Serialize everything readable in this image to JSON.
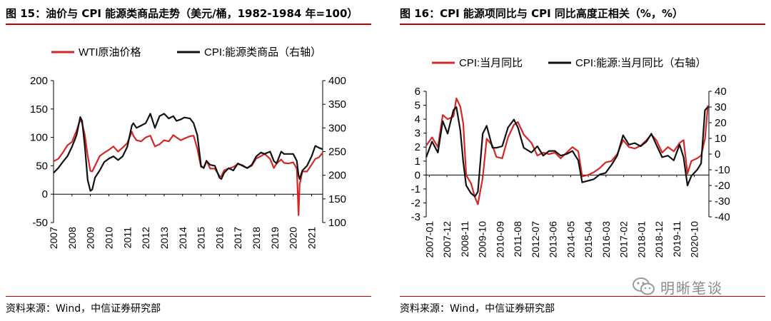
{
  "left": {
    "title": "图 15：油价与 CPI 能源类商品走势（美元/桶，1982-1984 年=100）",
    "source": "资料来源：Wind，中信证券研究部"
  },
  "right": {
    "title": "图 16：CPI 能源项同比与 CPI 同比高度正相关（%，%）",
    "source": "资料来源：Wind，中信证券研究部"
  },
  "watermark": {
    "text": "明晰笔谈",
    "icon": "wechat-icon"
  },
  "colors": {
    "red": "#d62728",
    "black": "#111111",
    "rule": "#c00000"
  },
  "chart_data": [
    {
      "type": "line",
      "legend": [
        "WTI原油价格",
        "CPI:能源类商品（右轴）"
      ],
      "legend_position": "top",
      "x_ticks": [
        "2007",
        "2008",
        "2009",
        "2010",
        "2011",
        "2012",
        "2013",
        "2014",
        "2015",
        "2016",
        "2017",
        "2018",
        "2019",
        "2020",
        "2021"
      ],
      "xlim": [
        2007,
        2021.6
      ],
      "ylim_left": [
        -50,
        200
      ],
      "yticks_left": [
        -50,
        0,
        50,
        100,
        150,
        200
      ],
      "ylim_right": [
        100,
        400
      ],
      "yticks_right": [
        100,
        150,
        200,
        250,
        300,
        350,
        400
      ],
      "series": [
        {
          "name": "WTI原油价格",
          "axis": "left",
          "color": "#d62728",
          "x": [
            2007.0,
            2007.25,
            2007.5,
            2007.75,
            2008.0,
            2008.25,
            2008.45,
            2008.55,
            2008.7,
            2008.85,
            2009.0,
            2009.1,
            2009.25,
            2009.5,
            2009.75,
            2010.0,
            2010.25,
            2010.5,
            2010.75,
            2011.0,
            2011.25,
            2011.33,
            2011.5,
            2011.75,
            2012.0,
            2012.25,
            2012.5,
            2012.75,
            2013.0,
            2013.25,
            2013.5,
            2013.67,
            2013.9,
            2014.1,
            2014.4,
            2014.6,
            2014.8,
            2015.0,
            2015.15,
            2015.3,
            2015.5,
            2015.75,
            2016.0,
            2016.1,
            2016.25,
            2016.5,
            2016.75,
            2017.0,
            2017.25,
            2017.5,
            2017.75,
            2018.0,
            2018.25,
            2018.45,
            2018.75,
            2018.95,
            2019.1,
            2019.35,
            2019.5,
            2019.75,
            2020.0,
            2020.2,
            2020.29,
            2020.35,
            2020.5,
            2020.75,
            2021.0,
            2021.2,
            2021.4,
            2021.6
          ],
          "y": [
            58,
            62,
            73,
            86,
            92,
            112,
            132,
            125,
            104,
            68,
            41,
            40,
            50,
            67,
            73,
            78,
            84,
            75,
            82,
            90,
            110,
            103,
            95,
            93,
            100,
            103,
            84,
            88,
            95,
            93,
            104,
            100,
            95,
            98,
            102,
            103,
            80,
            48,
            47,
            59,
            45,
            45,
            32,
            31,
            42,
            45,
            48,
            53,
            51,
            46,
            50,
            63,
            67,
            71,
            62,
            46,
            54,
            61,
            55,
            54,
            56,
            45,
            -37,
            17,
            40,
            40,
            52,
            62,
            65,
            73
          ]
        },
        {
          "name": "CPI:能源类商品（右轴）",
          "axis": "right",
          "color": "#111111",
          "x": [
            2007.0,
            2007.25,
            2007.5,
            2007.75,
            2008.0,
            2008.25,
            2008.45,
            2008.55,
            2008.7,
            2008.85,
            2009.0,
            2009.1,
            2009.25,
            2009.5,
            2009.75,
            2010.0,
            2010.25,
            2010.5,
            2010.75,
            2011.0,
            2011.25,
            2011.33,
            2011.5,
            2011.75,
            2012.0,
            2012.25,
            2012.5,
            2012.75,
            2013.0,
            2013.25,
            2013.5,
            2013.67,
            2013.9,
            2014.1,
            2014.4,
            2014.6,
            2014.8,
            2015.0,
            2015.15,
            2015.3,
            2015.5,
            2015.75,
            2016.0,
            2016.1,
            2016.25,
            2016.5,
            2016.75,
            2017.0,
            2017.25,
            2017.5,
            2017.75,
            2018.0,
            2018.25,
            2018.45,
            2018.75,
            2018.95,
            2019.1,
            2019.35,
            2019.5,
            2019.75,
            2020.0,
            2020.2,
            2020.29,
            2020.35,
            2020.5,
            2020.75,
            2021.0,
            2021.2,
            2021.4,
            2021.6
          ],
          "y": [
            205,
            215,
            228,
            240,
            260,
            285,
            323,
            315,
            260,
            190,
            167,
            170,
            195,
            210,
            228,
            235,
            240,
            232,
            240,
            260,
            305,
            310,
            300,
            305,
            310,
            330,
            300,
            325,
            330,
            320,
            325,
            315,
            318,
            322,
            320,
            310,
            285,
            220,
            215,
            230,
            222,
            220,
            195,
            192,
            205,
            215,
            210,
            225,
            220,
            215,
            222,
            240,
            248,
            245,
            250,
            230,
            225,
            250,
            245,
            245,
            245,
            230,
            200,
            192,
            210,
            220,
            240,
            262,
            258,
            255
          ]
        }
      ]
    },
    {
      "type": "line",
      "legend": [
        "CPI:当月同比",
        "CPI:能源:当月同比（右轴）"
      ],
      "legend_position": "top",
      "x_ticks": [
        "2007-01",
        "2007-12",
        "2008-11",
        "2009-10",
        "2010-09",
        "2011-08",
        "2012-07",
        "2013-06",
        "2014-05",
        "2015-04",
        "2016-03",
        "2017-02",
        "2018-01",
        "2018-12",
        "2019-11",
        "2020-10"
      ],
      "xlim": [
        2007.0,
        2021.5
      ],
      "ylim_left": [
        -3,
        6
      ],
      "yticks_left": [
        -3,
        -2,
        -1,
        0,
        1,
        2,
        3,
        4,
        5,
        6
      ],
      "ylim_right": [
        -40,
        40
      ],
      "yticks_right": [
        -40,
        -30,
        -20,
        -10,
        0,
        10,
        20,
        30,
        40
      ],
      "series": [
        {
          "name": "CPI:当月同比",
          "axis": "left",
          "color": "#d62728",
          "x": [
            2007.0,
            2007.3,
            2007.6,
            2007.85,
            2008.1,
            2008.4,
            2008.55,
            2008.75,
            2008.9,
            2009.05,
            2009.3,
            2009.5,
            2009.65,
            2009.9,
            2010.1,
            2010.4,
            2010.6,
            2010.9,
            2011.2,
            2011.5,
            2011.7,
            2012.0,
            2012.4,
            2012.7,
            2013.0,
            2013.3,
            2013.6,
            2013.9,
            2014.2,
            2014.5,
            2014.8,
            2015.0,
            2015.3,
            2015.6,
            2015.9,
            2016.2,
            2016.5,
            2016.8,
            2017.1,
            2017.4,
            2017.7,
            2018.0,
            2018.3,
            2018.55,
            2018.8,
            2019.1,
            2019.4,
            2019.7,
            2020.0,
            2020.2,
            2020.4,
            2020.6,
            2020.9,
            2021.1,
            2021.3,
            2021.45
          ],
          "y": [
            2.1,
            2.7,
            2.0,
            4.3,
            4.0,
            4.2,
            5.5,
            4.9,
            3.7,
            0.0,
            -0.6,
            -1.6,
            -2.1,
            -0.2,
            2.6,
            2.1,
            1.3,
            1.2,
            2.7,
            3.6,
            3.8,
            2.9,
            2.3,
            1.4,
            1.6,
            1.5,
            1.6,
            1.2,
            1.6,
            2.0,
            1.7,
            -0.1,
            0.0,
            0.2,
            0.5,
            0.9,
            1.0,
            1.5,
            2.5,
            2.0,
            1.9,
            2.1,
            2.5,
            2.9,
            2.5,
            1.6,
            2.0,
            1.7,
            2.3,
            2.5,
            0.1,
            1.0,
            1.2,
            1.4,
            2.6,
            5.0
          ]
        },
        {
          "name": "CPI:能源:当月同比（右轴）",
          "axis": "right",
          "color": "#111111",
          "x": [
            2007.0,
            2007.3,
            2007.6,
            2007.85,
            2008.1,
            2008.4,
            2008.55,
            2008.75,
            2008.9,
            2009.05,
            2009.3,
            2009.5,
            2009.65,
            2009.9,
            2010.1,
            2010.4,
            2010.6,
            2010.9,
            2011.2,
            2011.5,
            2011.7,
            2012.0,
            2012.4,
            2012.7,
            2013.0,
            2013.3,
            2013.6,
            2013.9,
            2014.2,
            2014.5,
            2014.8,
            2015.0,
            2015.3,
            2015.6,
            2015.9,
            2016.2,
            2016.5,
            2016.8,
            2017.1,
            2017.4,
            2017.7,
            2018.0,
            2018.3,
            2018.55,
            2018.8,
            2019.1,
            2019.4,
            2019.7,
            2020.0,
            2020.2,
            2020.4,
            2020.6,
            2020.9,
            2021.1,
            2021.3,
            2021.45
          ],
          "y": [
            -2,
            8,
            1,
            21,
            13,
            28,
            30,
            15,
            -5,
            -20,
            -25,
            -27,
            -24,
            13,
            18,
            4,
            4,
            5,
            17,
            22,
            17,
            4,
            1,
            5,
            -1,
            2,
            2,
            -1,
            0,
            2,
            -4,
            -18,
            -17,
            -16,
            -13,
            -12,
            -7,
            -1,
            12,
            6,
            7,
            5,
            8,
            13,
            6,
            -2,
            -1,
            -4,
            6,
            -2,
            -20,
            -14,
            -10,
            -6,
            28,
            30
          ]
        }
      ]
    }
  ]
}
